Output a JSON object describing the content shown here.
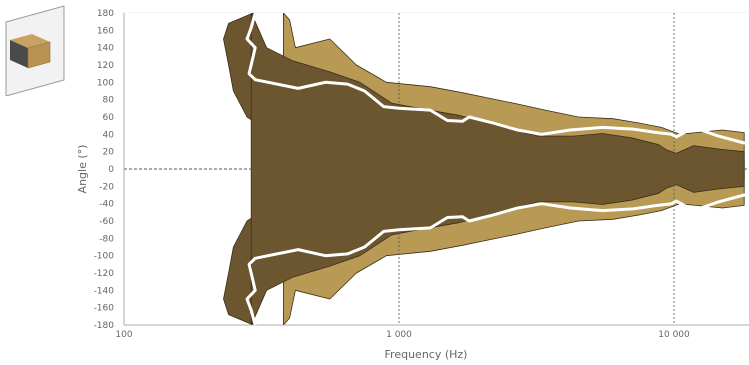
{
  "chart_data": {
    "type": "heatmap",
    "xlabel": "Frequency (Hz)",
    "ylabel": "Angle (°)",
    "x_scale": "log",
    "xlim": [
      100,
      18000
    ],
    "ylim": [
      -180,
      180
    ],
    "x_ticks": [
      {
        "value": 100,
        "label": "100"
      },
      {
        "value": 1000,
        "label": "1 000"
      },
      {
        "value": 10000,
        "label": "10 000"
      }
    ],
    "y_ticks": [
      180,
      160,
      140,
      120,
      100,
      80,
      60,
      40,
      20,
      0,
      -20,
      -40,
      -60,
      -80,
      -100,
      -120,
      -140,
      -160,
      -180
    ],
    "grid": true,
    "colors": {
      "level_high": "#b89a55",
      "level_mid": "#6b5630",
      "level_low": "#ffffff",
      "contour_minus6db": "#ffffff",
      "grid": "#cfcfcf",
      "reference_line": "#555555"
    },
    "regions": [
      {
        "level": "mid",
        "points": [
          [
            295,
            180
          ],
          [
            240,
            168
          ],
          [
            230,
            150
          ],
          [
            240,
            120
          ],
          [
            250,
            90
          ],
          [
            280,
            60
          ],
          [
            350,
            40
          ],
          [
            470,
            36
          ],
          [
            700,
            30
          ],
          [
            1200,
            26
          ],
          [
            2000,
            15
          ],
          [
            3000,
            10
          ],
          [
            5000,
            12
          ],
          [
            8000,
            6
          ],
          [
            10000,
            5
          ],
          [
            13000,
            18
          ],
          [
            18000,
            12
          ],
          [
            18000,
            -12
          ],
          [
            13000,
            -18
          ],
          [
            10000,
            -5
          ],
          [
            8000,
            -6
          ],
          [
            5000,
            -12
          ],
          [
            3000,
            -10
          ],
          [
            2000,
            -15
          ],
          [
            1200,
            -26
          ],
          [
            700,
            -30
          ],
          [
            470,
            -36
          ],
          [
            350,
            -40
          ],
          [
            280,
            -60
          ],
          [
            250,
            -90
          ],
          [
            240,
            -120
          ],
          [
            230,
            -150
          ],
          [
            240,
            -168
          ],
          [
            295,
            -180
          ]
        ]
      },
      {
        "level": "high",
        "points": [
          [
            380,
            180
          ],
          [
            400,
            172
          ],
          [
            420,
            140
          ],
          [
            560,
            150
          ],
          [
            700,
            120
          ],
          [
            900,
            100
          ],
          [
            1300,
            95
          ],
          [
            1700,
            88
          ],
          [
            2100,
            82
          ],
          [
            2700,
            75
          ],
          [
            3400,
            68
          ],
          [
            4500,
            60
          ],
          [
            6000,
            58
          ],
          [
            7500,
            53
          ],
          [
            9000,
            48
          ],
          [
            10500,
            40
          ],
          [
            12000,
            42
          ],
          [
            15000,
            45
          ],
          [
            18000,
            42
          ],
          [
            18000,
            -42
          ],
          [
            15000,
            -45
          ],
          [
            12000,
            -42
          ],
          [
            10500,
            -40
          ],
          [
            9000,
            -48
          ],
          [
            7500,
            -53
          ],
          [
            6000,
            -58
          ],
          [
            4500,
            -60
          ],
          [
            3400,
            -68
          ],
          [
            2700,
            -75
          ],
          [
            2100,
            -82
          ],
          [
            1700,
            -88
          ],
          [
            1300,
            -95
          ],
          [
            900,
            -100
          ],
          [
            700,
            -120
          ],
          [
            560,
            -150
          ],
          [
            420,
            -140
          ],
          [
            400,
            -172
          ],
          [
            380,
            -180
          ]
        ]
      },
      {
        "level": "mid",
        "points": [
          [
            290,
            180
          ],
          [
            300,
            170
          ],
          [
            330,
            140
          ],
          [
            410,
            125
          ],
          [
            560,
            112
          ],
          [
            720,
            100
          ],
          [
            940,
            76
          ],
          [
            1180,
            70
          ],
          [
            1650,
            62
          ],
          [
            2000,
            55
          ],
          [
            2600,
            45
          ],
          [
            3200,
            38
          ],
          [
            4300,
            38
          ],
          [
            5500,
            41
          ],
          [
            7000,
            36
          ],
          [
            8800,
            28
          ],
          [
            9400,
            22
          ],
          [
            10200,
            18
          ],
          [
            11800,
            27
          ],
          [
            14600,
            23
          ],
          [
            18000,
            20
          ],
          [
            18000,
            -20
          ],
          [
            14600,
            -23
          ],
          [
            11800,
            -27
          ],
          [
            10200,
            -18
          ],
          [
            9400,
            -22
          ],
          [
            8800,
            -28
          ],
          [
            7000,
            -36
          ],
          [
            5500,
            -41
          ],
          [
            4300,
            -38
          ],
          [
            3200,
            -38
          ],
          [
            2600,
            -45
          ],
          [
            2000,
            -55
          ],
          [
            1650,
            -62
          ],
          [
            1180,
            -70
          ],
          [
            940,
            -76
          ],
          [
            720,
            -100
          ],
          [
            560,
            -112
          ],
          [
            410,
            -125
          ],
          [
            330,
            -140
          ],
          [
            300,
            -170
          ],
          [
            290,
            -180
          ]
        ]
      }
    ],
    "contour_-6dB": {
      "upper": [
        [
          300,
          180
        ],
        [
          290,
          163
        ],
        [
          280,
          150
        ],
        [
          300,
          140
        ],
        [
          285,
          110
        ],
        [
          300,
          103
        ],
        [
          430,
          93
        ],
        [
          540,
          100
        ],
        [
          650,
          98
        ],
        [
          750,
          90
        ],
        [
          880,
          72
        ],
        [
          1000,
          70
        ],
        [
          1300,
          68
        ],
        [
          1500,
          56
        ],
        [
          1700,
          55
        ],
        [
          1800,
          60
        ],
        [
          2200,
          53
        ],
        [
          2700,
          45
        ],
        [
          3300,
          40
        ],
        [
          4200,
          45
        ],
        [
          5500,
          48
        ],
        [
          7100,
          46
        ],
        [
          8700,
          42
        ],
        [
          9800,
          40
        ],
        [
          10200,
          37
        ],
        [
          11800,
          48
        ],
        [
          14500,
          38
        ],
        [
          18000,
          30
        ]
      ],
      "lower": [
        [
          300,
          -180
        ],
        [
          290,
          -163
        ],
        [
          280,
          -150
        ],
        [
          300,
          -140
        ],
        [
          285,
          -110
        ],
        [
          300,
          -103
        ],
        [
          430,
          -93
        ],
        [
          540,
          -100
        ],
        [
          650,
          -98
        ],
        [
          750,
          -90
        ],
        [
          880,
          -72
        ],
        [
          1000,
          -70
        ],
        [
          1300,
          -68
        ],
        [
          1500,
          -56
        ],
        [
          1700,
          -55
        ],
        [
          1800,
          -60
        ],
        [
          2200,
          -53
        ],
        [
          2700,
          -45
        ],
        [
          3300,
          -40
        ],
        [
          4200,
          -45
        ],
        [
          5500,
          -48
        ],
        [
          7100,
          -46
        ],
        [
          8700,
          -42
        ],
        [
          9800,
          -40
        ],
        [
          10200,
          -37
        ],
        [
          11800,
          -48
        ],
        [
          14500,
          -38
        ],
        [
          18000,
          -30
        ]
      ]
    }
  },
  "thumbnail": {
    "icon": "speaker-cabinet-icon"
  }
}
